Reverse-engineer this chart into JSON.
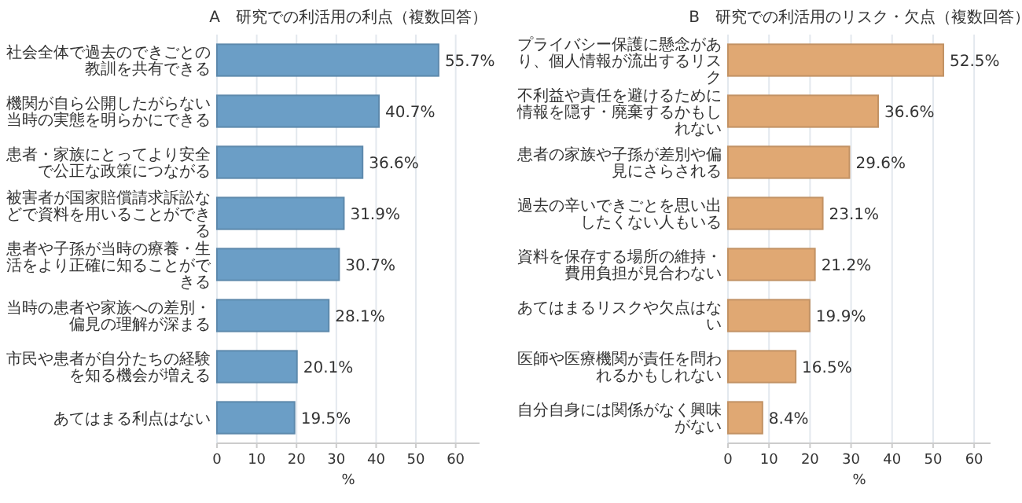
{
  "chart_data": [
    {
      "type": "bar",
      "orientation": "horizontal",
      "title": "A　研究での利活用の利点（複数回答）",
      "xlabel": "%",
      "categories": [
        "社会全体で過去のできごとの教訓を共有できる",
        "機関が自ら公開したがらない当時の実態を明らかにできる",
        "患者・家族にとってより安全で公正な政策につながる",
        "被害者が国家賠償請求訴訟などで資料を用いることができる",
        "患者や子孫が当時の療養・生活をより正確に知ることができる",
        "当時の患者や家族への差別・偏見の理解が深まる",
        "市民や患者が自分たちの経験を知る機会が増える",
        "あてはまる利点はない"
      ],
      "values": [
        55.7,
        40.7,
        36.6,
        31.9,
        30.7,
        28.1,
        20.1,
        19.5
      ],
      "value_labels": [
        "55.7%",
        "40.7%",
        "36.6%",
        "31.9%",
        "30.7%",
        "28.1%",
        "20.1%",
        "19.5%"
      ],
      "color": "#6b9ec6",
      "xlim": [
        0,
        66
      ],
      "xticks": [
        0,
        10,
        20,
        30,
        40,
        50,
        60
      ],
      "grid": "x"
    },
    {
      "type": "bar",
      "orientation": "horizontal",
      "title": "B　研究での利活用のリスク・欠点（複数回答）",
      "xlabel": "%",
      "categories": [
        "プライバシー保護に懸念があり、個人情報が流出するリスク",
        "不利益や責任を避けるために情報を隠す・廃棄するかもしれない",
        "患者の家族や子孫が差別や偏見にさらされる",
        "過去の辛いできごとを思い出したくない人もいる",
        "資料を保存する場所の維持・費用負担が見合わない",
        "あてはまるリスクや欠点はない",
        "医師や医療機関が責任を問われるかもしれない",
        "自分自身には関係がなく興味がない"
      ],
      "values": [
        52.5,
        36.6,
        29.6,
        23.1,
        21.2,
        19.9,
        16.5,
        8.4
      ],
      "value_labels": [
        "52.5%",
        "36.6%",
        "29.6%",
        "23.1%",
        "21.2%",
        "19.9%",
        "16.5%",
        "8.4%"
      ],
      "color": "#e0a873",
      "xlim": [
        0,
        64
      ],
      "xticks": [
        0,
        10,
        20,
        30,
        40,
        50,
        60
      ],
      "grid": "x"
    }
  ]
}
